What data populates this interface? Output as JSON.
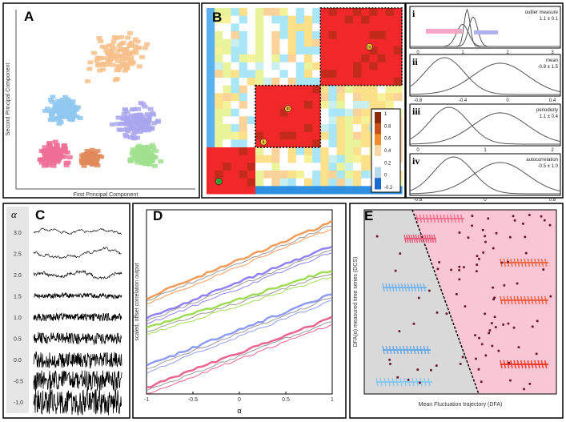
{
  "chart_data": [
    {
      "panel": "A",
      "type": "scatter",
      "xlabel": "First Principal Component",
      "ylabel": "Second Principal Component",
      "clusters": [
        {
          "color": "#f7c08a",
          "center": [
            0.55,
            0.75
          ]
        },
        {
          "color": "#8fc8f0",
          "center": [
            0.25,
            0.45
          ]
        },
        {
          "color": "#a9a6ee",
          "center": [
            0.65,
            0.38
          ]
        },
        {
          "color": "#ee6f95",
          "center": [
            0.2,
            0.2
          ]
        },
        {
          "color": "#9fe08e",
          "center": [
            0.7,
            0.2
          ]
        },
        {
          "color": "#e08a5a",
          "center": [
            0.4,
            0.18
          ]
        }
      ]
    },
    {
      "panel": "B",
      "type": "heatmap",
      "colorbar_ticks": [
        "1",
        "0.8",
        "0.6",
        "0.4",
        "0.2",
        "0",
        "-0.2"
      ],
      "block_labels": [
        "iv",
        "iii",
        "ii",
        "i"
      ],
      "clim": [
        -0.2,
        1
      ]
    },
    {
      "panel": "i-iv",
      "type": "line",
      "subpanels": [
        {
          "label": "i",
          "title": "outlier measure",
          "value": "1.1 ± 0.1",
          "xticks": [
            "0",
            "1",
            "2",
            "3"
          ]
        },
        {
          "label": "ii",
          "title": "mean",
          "value": "-0.8 ± 1.5",
          "xticks": [
            "-0.8",
            "-0.4",
            "0",
            "0.4"
          ]
        },
        {
          "label": "iii",
          "title": "periodicity",
          "value": "1.1 ± 0.4",
          "xticks": [
            "0",
            "1",
            "2"
          ]
        },
        {
          "label": "iv",
          "title": "autocorrelation",
          "value": "-0.5 ± 1.0",
          "xticks": [
            "-0.8",
            "0",
            "0.8"
          ]
        }
      ]
    },
    {
      "panel": "C",
      "type": "line",
      "ylabel_symbol": "α",
      "alpha_values": [
        "3.0",
        "2.5",
        "2.0",
        "1.5",
        "1.0",
        "0.5",
        "0.0",
        "-0.5",
        "-1.0"
      ]
    },
    {
      "panel": "D",
      "type": "line",
      "xlabel": "α",
      "ylabel": "scaled, offset correlation output",
      "xticks": [
        "-1",
        "-0.5",
        "0",
        "0.5",
        "1"
      ],
      "xlim": [
        -1,
        1
      ],
      "series_colors": [
        "#f08a3c",
        "#7b6cf0",
        "#8fd63a",
        "#7a8cf0",
        "#e84a7a"
      ]
    },
    {
      "panel": "E",
      "type": "scatter",
      "xlabel": "Mean Fluctuation trajectory (DFA)",
      "ylabel": "DFA(α) measured time series (DCS)",
      "region_colors": [
        "#d9d9d9",
        "#f9c6d6"
      ]
    }
  ],
  "panel_labels": {
    "a": "A",
    "b": "B",
    "c": "C",
    "d": "D",
    "e": "E"
  }
}
